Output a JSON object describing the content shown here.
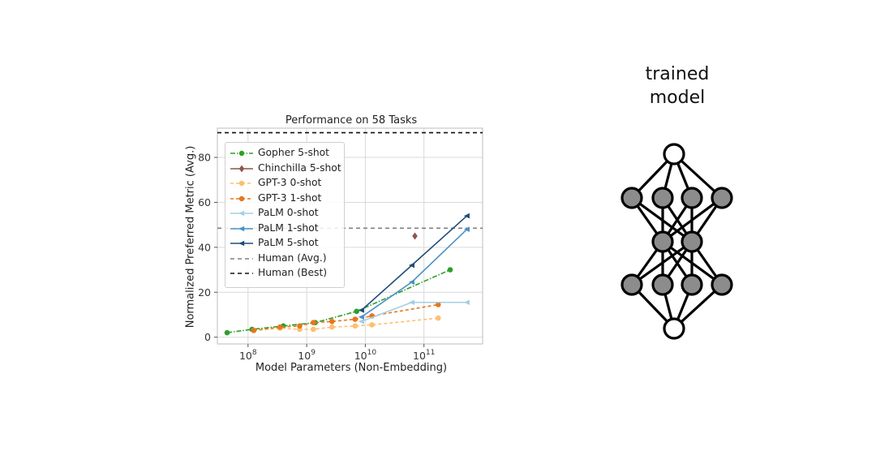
{
  "chart_data": {
    "type": "line",
    "title": "Performance on 58 Tasks",
    "xlabel": "Model Parameters (Non-Embedding)",
    "ylabel": "Normalized Preferred Metric (Avg.)",
    "xscale": "log",
    "xlim": [
      30000000.0,
      1000000000000.0
    ],
    "ylim": [
      -3,
      93
    ],
    "x_ticks": [
      {
        "value": 100000000.0,
        "base": "10",
        "exp": "8"
      },
      {
        "value": 1000000000.0,
        "base": "10",
        "exp": "9"
      },
      {
        "value": 10000000000.0,
        "base": "10",
        "exp": "10"
      },
      {
        "value": 100000000000.0,
        "base": "10",
        "exp": "11"
      }
    ],
    "y_ticks": [
      0,
      20,
      40,
      60,
      80
    ],
    "grid": true,
    "legend_position": "upper-left",
    "series": [
      {
        "name": "Gopher 5-shot",
        "color": "#2ca02c",
        "dash": "6,2,1.5,2",
        "marker": "circle",
        "x": [
          44000000.0,
          117000000.0,
          400000000.0,
          1400000000.0,
          7100000000.0,
          280000000000.0
        ],
        "y": [
          2,
          3.5,
          5,
          6.5,
          11.5,
          30
        ]
      },
      {
        "name": "Chinchilla 5-shot",
        "color": "#8c564b",
        "dash": "",
        "marker": "diamond",
        "x": [
          70000000000.0
        ],
        "y": [
          45
        ]
      },
      {
        "name": "GPT-3 0-shot",
        "color": "#fdbf6f",
        "dash": "4,3",
        "marker": "circle",
        "x": [
          125000000.0,
          350000000.0,
          760000000.0,
          1300000000.0,
          2700000000.0,
          6700000000.0,
          13000000000.0,
          175000000000.0
        ],
        "y": [
          3,
          4,
          3.5,
          3.5,
          4.5,
          5,
          5.5,
          8.5
        ]
      },
      {
        "name": "GPT-3 1-shot",
        "color": "#e6771a",
        "dash": "4,3",
        "marker": "circle",
        "x": [
          125000000.0,
          350000000.0,
          760000000.0,
          1300000000.0,
          2700000000.0,
          6700000000.0,
          13000000000.0,
          175000000000.0
        ],
        "y": [
          3,
          4.5,
          5,
          6.5,
          7,
          8,
          9.5,
          14.5
        ]
      },
      {
        "name": "PaLM 0-shot",
        "color": "#a6cee3",
        "dash": "",
        "marker": "triangle-left",
        "x": [
          8600000000.0,
          62000000000.0,
          540000000000.0
        ],
        "y": [
          7,
          15.5,
          15.5
        ]
      },
      {
        "name": "PaLM 1-shot",
        "color": "#4a90c4",
        "dash": "",
        "marker": "triangle-left",
        "x": [
          8600000000.0,
          62000000000.0,
          540000000000.0
        ],
        "y": [
          9,
          24.5,
          48
        ]
      },
      {
        "name": "PaLM 5-shot",
        "color": "#1f4e79",
        "dash": "",
        "marker": "triangle-left",
        "x": [
          8600000000.0,
          62000000000.0,
          540000000000.0
        ],
        "y": [
          12,
          32,
          54
        ]
      }
    ],
    "reference_lines": [
      {
        "name": "Human (Avg.)",
        "color": "#808080",
        "dash": "5,4",
        "y": 48.5
      },
      {
        "name": "Human (Best)",
        "color": "#111111",
        "dash": "5,4",
        "y": 91
      }
    ]
  },
  "diagram": {
    "title_line1": "trained",
    "title_line2": "model",
    "node_fill_input": "#ffffff",
    "node_fill_hidden": "#8c8c8c",
    "edge_color": "#000000"
  }
}
